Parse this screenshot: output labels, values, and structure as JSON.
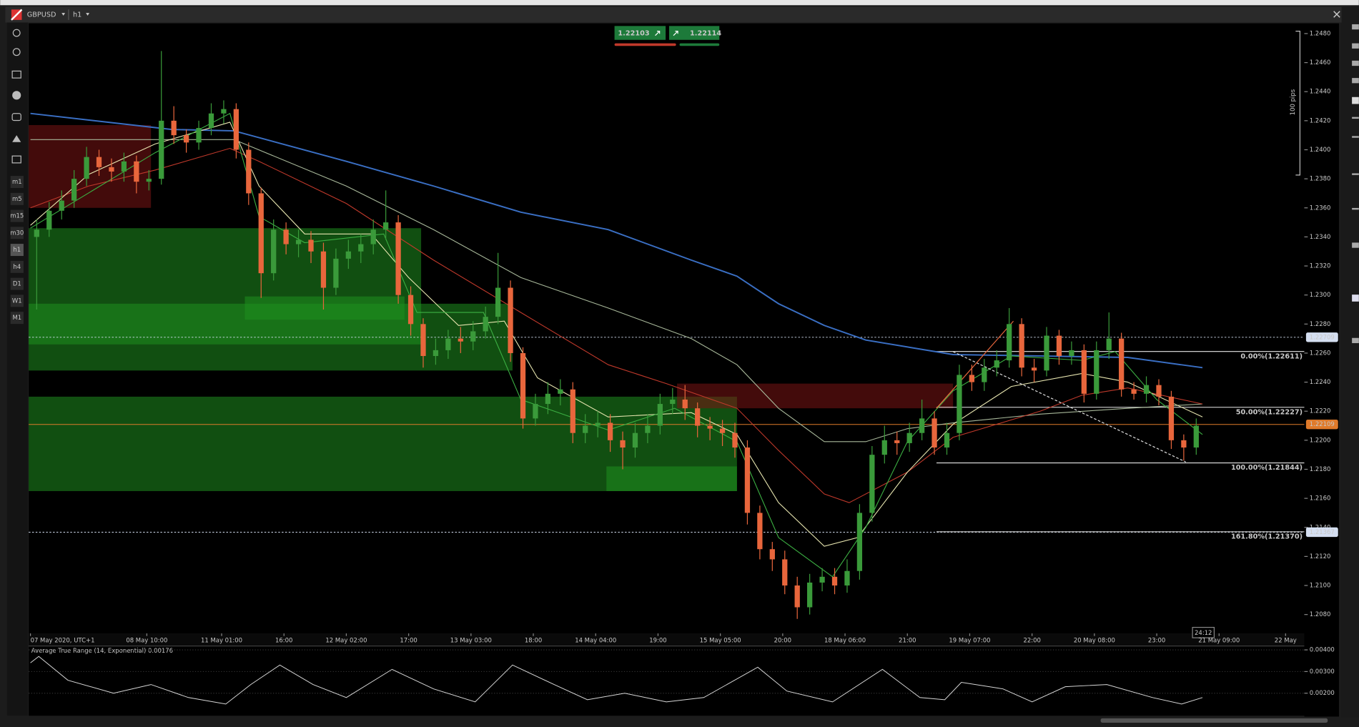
{
  "chart_data": {
    "type": "candlestick",
    "symbol": "GBPUSD",
    "timeframe": "h1",
    "bid": 1.22103,
    "ask": 1.22114,
    "pips_label": "100 pips",
    "countdown": "24:12",
    "toolbar": [
      "m1",
      "m5",
      "m15",
      "m30",
      "h1",
      "h4",
      "D1",
      "W1",
      "M1"
    ],
    "up_color": "#3a9a3a",
    "down_color": "#e8663c",
    "xlim": [
      0,
      306.5
    ],
    "xticks": [
      {
        "value": 0,
        "label": "07 May 2020, UTC+1"
      },
      {
        "value": 28,
        "label": "08 May 10:00"
      },
      {
        "value": 46,
        "label": "11 May 01:00"
      },
      {
        "value": 61,
        "label": "16:00"
      },
      {
        "value": 76,
        "label": "12 May 02:00"
      },
      {
        "value": 91,
        "label": "17:00"
      },
      {
        "value": 106,
        "label": "13 May 03:00"
      },
      {
        "value": 121,
        "label": "18:00"
      },
      {
        "value": 136,
        "label": "14 May 04:00"
      },
      {
        "value": 151,
        "label": "19:00"
      },
      {
        "value": 166,
        "label": "15 May 05:00"
      },
      {
        "value": 181,
        "label": "20:00"
      },
      {
        "value": 196,
        "label": "18 May 06:00"
      },
      {
        "value": 211,
        "label": "21:00"
      },
      {
        "value": 226,
        "label": "19 May 07:00"
      },
      {
        "value": 241,
        "label": "22:00"
      },
      {
        "value": 256,
        "label": "20 May 08:00"
      },
      {
        "value": 271,
        "label": "23:00"
      },
      {
        "value": 286,
        "label": "21 May 09:00"
      },
      {
        "value": 302,
        "label": "22 May"
      }
    ],
    "ylim": [
      1.2067,
      1.2487
    ],
    "yticks": [
      {
        "value": 1.248,
        "label": "1.2480"
      },
      {
        "value": 1.246,
        "label": "1.2460"
      },
      {
        "value": 1.244,
        "label": "1.2440"
      },
      {
        "value": 1.242,
        "label": "1.2420"
      },
      {
        "value": 1.24,
        "label": "1.2400"
      },
      {
        "value": 1.238,
        "label": "1.2380"
      },
      {
        "value": 1.236,
        "label": "1.2360"
      },
      {
        "value": 1.234,
        "label": "1.2340"
      },
      {
        "value": 1.232,
        "label": "1.2320"
      },
      {
        "value": 1.23,
        "label": "1.2300"
      },
      {
        "value": 1.228,
        "label": "1.2280"
      },
      {
        "value": 1.226,
        "label": "1.2260"
      },
      {
        "value": 1.224,
        "label": "1.2240"
      },
      {
        "value": 1.222,
        "label": "1.2220"
      },
      {
        "value": 1.22,
        "label": "1.2200"
      },
      {
        "value": 1.218,
        "label": "1.2180"
      },
      {
        "value": 1.216,
        "label": "1.2160"
      },
      {
        "value": 1.214,
        "label": "1.2140"
      },
      {
        "value": 1.212,
        "label": "1.2120"
      },
      {
        "value": 1.21,
        "label": "1.2100"
      },
      {
        "value": 1.208,
        "label": "1.2080"
      }
    ],
    "zones": [
      {
        "x": [
          0,
          29
        ],
        "range": [
          1.236,
          1.2417
        ],
        "color": "#7a1414"
      },
      {
        "x": [
          0,
          94
        ],
        "range": [
          1.2266,
          1.2346
        ],
        "color": "#1f8f1f"
      },
      {
        "x": [
          0,
          116
        ],
        "range": [
          1.2248,
          1.2294
        ],
        "color": "#1f8f1f"
      },
      {
        "x": [
          52,
          90
        ],
        "range": [
          1.2283,
          1.2299
        ],
        "color": "#1f8f1f"
      },
      {
        "x": [
          0,
          170
        ],
        "range": [
          1.2165,
          1.223
        ],
        "color": "#1f8f1f"
      },
      {
        "x": [
          139,
          170
        ],
        "range": [
          1.2165,
          1.2182
        ],
        "color": "#1f8f1f"
      },
      {
        "x": [
          156,
          222
        ],
        "range": [
          1.2222,
          1.2239
        ],
        "color": "#7a1414"
      }
    ],
    "lines": [
      {
        "color": "#3a6fc4",
        "x": [
          0,
          34,
          49,
          76,
          97,
          118,
          139,
          159,
          170,
          180,
          191,
          201,
          222,
          243,
          264,
          282
        ],
        "values": [
          1.2425,
          1.2414,
          1.2413,
          1.2392,
          1.2375,
          1.2357,
          1.2345,
          1.2324,
          1.2313,
          1.2294,
          1.2279,
          1.2269,
          1.2259,
          1.2258,
          1.2257,
          1.225
        ]
      },
      {
        "color": "#a8b89a",
        "x": [
          0,
          49,
          76,
          97,
          118,
          139,
          159,
          170,
          180,
          191,
          201,
          211,
          222,
          243,
          264,
          282
        ],
        "values": [
          1.2407,
          1.2407,
          1.2375,
          1.2345,
          1.2312,
          1.2291,
          1.227,
          1.2252,
          1.2222,
          1.2199,
          1.2199,
          1.2208,
          1.2212,
          1.2218,
          1.2222,
          1.2225
        ]
      },
      {
        "color": "#c0392b",
        "x": [
          0,
          14,
          30,
          48,
          55,
          76,
          97,
          118,
          139,
          153,
          170,
          180,
          191,
          197,
          211,
          222,
          243,
          253,
          264,
          282
        ],
        "values": [
          1.236,
          1.2375,
          1.2386,
          1.2401,
          1.2392,
          1.2363,
          1.2324,
          1.2288,
          1.2252,
          1.2239,
          1.2222,
          1.2193,
          1.2163,
          1.2157,
          1.2178,
          1.2202,
          1.222,
          1.2231,
          1.2236,
          1.2225
        ]
      },
      {
        "color": "#e8e6b0",
        "x": [
          0,
          14,
          30,
          48,
          55,
          66,
          82,
          91,
          103,
          114,
          122,
          139,
          159,
          170,
          180,
          191,
          199,
          211,
          222,
          236,
          253,
          264,
          282
        ],
        "values": [
          1.2348,
          1.2383,
          1.2404,
          1.2419,
          1.2375,
          1.2342,
          1.2342,
          1.2312,
          1.2279,
          1.2282,
          1.2243,
          1.2216,
          1.2219,
          1.2204,
          1.2157,
          1.2127,
          1.2133,
          1.2178,
          1.2211,
          1.2237,
          1.2246,
          1.224,
          1.2216
        ]
      },
      {
        "color": "#3cb043",
        "x": [
          0,
          30,
          48,
          55,
          66,
          85,
          93,
          109,
          118,
          139,
          155,
          170,
          180,
          193,
          201,
          211,
          222,
          236,
          253,
          261,
          271,
          282
        ],
        "values": [
          1.2346,
          1.2398,
          1.2425,
          1.2354,
          1.2336,
          1.2342,
          1.2288,
          1.2288,
          1.2228,
          1.2207,
          1.2222,
          1.2199,
          1.2133,
          1.2106,
          1.214,
          1.2199,
          1.2234,
          1.2258,
          1.2255,
          1.2261,
          1.2228,
          1.2204
        ]
      }
    ],
    "trendlines": [
      {
        "color": "#dddddd",
        "dashed": true,
        "x": [
          222,
          278
        ],
        "values": [
          1.2261,
          1.2185
        ]
      },
      {
        "color": "#e8663c",
        "dashed": false,
        "x": [
          218,
          236.5
        ],
        "values": [
          1.2222,
          1.2282
        ]
      }
    ],
    "hlines": [
      {
        "value": 1.22709,
        "color": "#d4def0",
        "dashed": true
      },
      {
        "value": 1.22109,
        "color": "#e07a2a",
        "dashed": false
      },
      {
        "value": 1.21367,
        "color": "#d4def0",
        "dashed": true
      }
    ],
    "fib_start": 218,
    "fib": [
      {
        "value": 1.22611,
        "label": "0.00%(1.22611)"
      },
      {
        "value": 1.22227,
        "label": "50.00%(1.22227)"
      },
      {
        "value": 1.21844,
        "label": "100.00%(1.21844)"
      },
      {
        "value": 1.2137,
        "label": "161.80%(1.21370)"
      }
    ],
    "candles": [
      [
        1.234,
        1.2352,
        1.229,
        1.2345
      ],
      [
        1.2345,
        1.2364,
        1.234,
        1.2358
      ],
      [
        1.2358,
        1.2372,
        1.2352,
        1.2365
      ],
      [
        1.2365,
        1.2386,
        1.236,
        1.238
      ],
      [
        1.238,
        1.2402,
        1.2375,
        1.2395
      ],
      [
        1.2395,
        1.24,
        1.2382,
        1.2388
      ],
      [
        1.2388,
        1.2394,
        1.2378,
        1.2385
      ],
      [
        1.2385,
        1.2398,
        1.2378,
        1.2392
      ],
      [
        1.2392,
        1.2396,
        1.237,
        1.2378
      ],
      [
        1.2378,
        1.2386,
        1.2372,
        1.238
      ],
      [
        1.238,
        1.2468,
        1.2376,
        1.242
      ],
      [
        1.242,
        1.243,
        1.2404,
        1.241
      ],
      [
        1.241,
        1.2414,
        1.2398,
        1.2405
      ],
      [
        1.2405,
        1.242,
        1.24,
        1.2415
      ],
      [
        1.2415,
        1.2432,
        1.241,
        1.2425
      ],
      [
        1.2425,
        1.2434,
        1.2418,
        1.2428
      ],
      [
        1.2428,
        1.2432,
        1.2394,
        1.24
      ],
      [
        1.24,
        1.2405,
        1.2362,
        1.237
      ],
      [
        1.237,
        1.2374,
        1.2298,
        1.2315
      ],
      [
        1.2315,
        1.2352,
        1.231,
        1.2345
      ],
      [
        1.2345,
        1.235,
        1.2328,
        1.2335
      ],
      [
        1.2335,
        1.2345,
        1.2326,
        1.2338
      ],
      [
        1.2338,
        1.2344,
        1.2322,
        1.233
      ],
      [
        1.233,
        1.2336,
        1.229,
        1.2305
      ],
      [
        1.2305,
        1.2332,
        1.23,
        1.2325
      ],
      [
        1.2325,
        1.2338,
        1.2318,
        1.233
      ],
      [
        1.233,
        1.2342,
        1.2322,
        1.2335
      ],
      [
        1.2335,
        1.2352,
        1.2328,
        1.2345
      ],
      [
        1.2345,
        1.2372,
        1.2338,
        1.235
      ],
      [
        1.235,
        1.2355,
        1.2294,
        1.23
      ],
      [
        1.23,
        1.2306,
        1.2272,
        1.228
      ],
      [
        1.228,
        1.2284,
        1.225,
        1.2258
      ],
      [
        1.2258,
        1.227,
        1.2252,
        1.2262
      ],
      [
        1.2262,
        1.2276,
        1.2256,
        1.227
      ],
      [
        1.227,
        1.2278,
        1.226,
        1.2268
      ],
      [
        1.2268,
        1.2282,
        1.2262,
        1.2275
      ],
      [
        1.2275,
        1.2292,
        1.227,
        1.2285
      ],
      [
        1.2285,
        1.2329,
        1.228,
        1.2305
      ],
      [
        1.2305,
        1.231,
        1.2254,
        1.226
      ],
      [
        1.226,
        1.2264,
        1.2208,
        1.2215
      ],
      [
        1.2215,
        1.2232,
        1.221,
        1.2225
      ],
      [
        1.2225,
        1.224,
        1.2218,
        1.2232
      ],
      [
        1.2232,
        1.2242,
        1.2224,
        1.2235
      ],
      [
        1.2235,
        1.224,
        1.2198,
        1.2205
      ],
      [
        1.2205,
        1.2218,
        1.2198,
        1.221
      ],
      [
        1.221,
        1.222,
        1.2202,
        1.2212
      ],
      [
        1.2212,
        1.2218,
        1.2192,
        1.22
      ],
      [
        1.22,
        1.2206,
        1.218,
        1.2195
      ],
      [
        1.2195,
        1.2212,
        1.2188,
        1.2205
      ],
      [
        1.2205,
        1.2218,
        1.2198,
        1.221
      ],
      [
        1.221,
        1.2232,
        1.2204,
        1.2225
      ],
      [
        1.2225,
        1.2236,
        1.2218,
        1.2228
      ],
      [
        1.2228,
        1.2238,
        1.2214,
        1.2222
      ],
      [
        1.2222,
        1.2226,
        1.2202,
        1.221
      ],
      [
        1.221,
        1.2216,
        1.22,
        1.2208
      ],
      [
        1.2208,
        1.2214,
        1.2196,
        1.2205
      ],
      [
        1.2205,
        1.2212,
        1.2188,
        1.2195
      ],
      [
        1.2195,
        1.22,
        1.2142,
        1.215
      ],
      [
        1.215,
        1.2155,
        1.2118,
        1.2125
      ],
      [
        1.2125,
        1.213,
        1.211,
        1.2118
      ],
      [
        1.2118,
        1.2124,
        1.2094,
        1.21
      ],
      [
        1.21,
        1.2106,
        1.2077,
        1.2085
      ],
      [
        1.2085,
        1.2108,
        1.208,
        1.2102
      ],
      [
        1.2102,
        1.2112,
        1.2096,
        1.2106
      ],
      [
        1.2106,
        1.2112,
        1.2094,
        1.21
      ],
      [
        1.21,
        1.2118,
        1.2095,
        1.211
      ],
      [
        1.211,
        1.2156,
        1.2104,
        1.215
      ],
      [
        1.215,
        1.2196,
        1.2144,
        1.219
      ],
      [
        1.219,
        1.221,
        1.2184,
        1.22
      ],
      [
        1.22,
        1.2206,
        1.219,
        1.2198
      ],
      [
        1.2198,
        1.2212,
        1.2192,
        1.2205
      ],
      [
        1.2205,
        1.2228,
        1.22,
        1.2215
      ],
      [
        1.2215,
        1.222,
        1.219,
        1.2195
      ],
      [
        1.2195,
        1.2212,
        1.219,
        1.2205
      ],
      [
        1.2205,
        1.2252,
        1.22,
        1.2245
      ],
      [
        1.2245,
        1.2252,
        1.2234,
        1.224
      ],
      [
        1.224,
        1.2256,
        1.2234,
        1.225
      ],
      [
        1.225,
        1.2262,
        1.2244,
        1.2255
      ],
      [
        1.2255,
        1.2291,
        1.225,
        1.228
      ],
      [
        1.228,
        1.2284,
        1.2244,
        1.225
      ],
      [
        1.225,
        1.2256,
        1.224,
        1.2248
      ],
      [
        1.2248,
        1.2278,
        1.2244,
        1.2272
      ],
      [
        1.2272,
        1.2276,
        1.2252,
        1.2258
      ],
      [
        1.2258,
        1.2268,
        1.2252,
        1.2262
      ],
      [
        1.2262,
        1.2266,
        1.2226,
        1.2232
      ],
      [
        1.2232,
        1.2268,
        1.2228,
        1.2262
      ],
      [
        1.2262,
        1.2288,
        1.2256,
        1.227
      ],
      [
        1.227,
        1.2274,
        1.223,
        1.2235
      ],
      [
        1.2235,
        1.224,
        1.2228,
        1.2232
      ],
      [
        1.2232,
        1.2244,
        1.2226,
        1.2238
      ],
      [
        1.2238,
        1.2242,
        1.2224,
        1.223
      ],
      [
        1.223,
        1.2234,
        1.2194,
        1.22
      ],
      [
        1.22,
        1.2204,
        1.2186,
        1.2195
      ],
      [
        1.2195,
        1.2215,
        1.219,
        1.221
      ]
    ],
    "atr": {
      "title": "Average True Range (14, Exponential) 0.00176",
      "color": "#d8d8d8",
      "ylim": [
        0.001,
        0.0042
      ],
      "yticks": [
        {
          "value": 0.004,
          "label": "0.00400"
        },
        {
          "value": 0.003,
          "label": "0.00300"
        },
        {
          "value": 0.002,
          "label": "0.00200"
        }
      ],
      "x": [
        0,
        2,
        9,
        20,
        29,
        38,
        47,
        53,
        60,
        68,
        76,
        87,
        97,
        107,
        116,
        126,
        134,
        143,
        153,
        162,
        175,
        182,
        193,
        205,
        214,
        220,
        224,
        234,
        241,
        249,
        259,
        270,
        277,
        282
      ],
      "values": [
        0.0034,
        0.0037,
        0.0026,
        0.002,
        0.0024,
        0.0018,
        0.0015,
        0.0024,
        0.0033,
        0.0024,
        0.0018,
        0.0031,
        0.0022,
        0.0016,
        0.0033,
        0.0024,
        0.0017,
        0.002,
        0.0016,
        0.0018,
        0.0032,
        0.0021,
        0.0016,
        0.0031,
        0.0018,
        0.0017,
        0.0025,
        0.0022,
        0.0016,
        0.0023,
        0.0024,
        0.0018,
        0.0015,
        0.0018
      ]
    }
  }
}
